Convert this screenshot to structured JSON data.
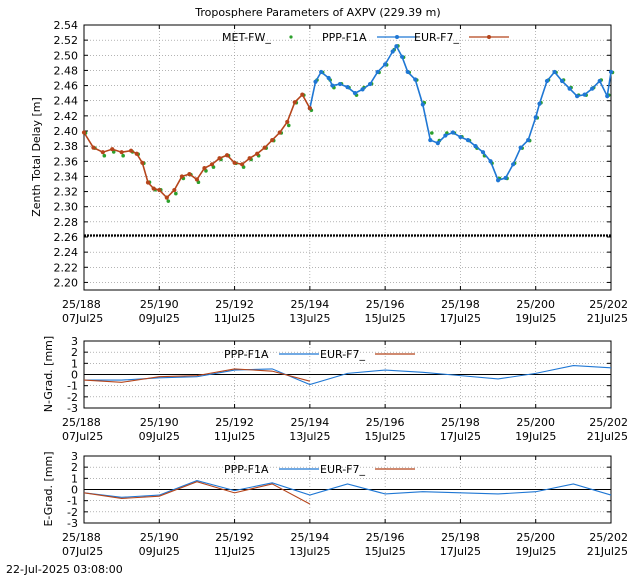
{
  "colors": {
    "met": "#2ca02c",
    "ppp": "#1f77d4",
    "eur": "#b5451b",
    "grid": "#888888",
    "axis": "#000000",
    "ref": "#000000"
  },
  "footer": {
    "timestamp": "22-Jul-2025 03:08:00"
  },
  "chart_data": [
    {
      "type": "scatter",
      "title": "Troposphere Parameters of AXPV (229.39 m)",
      "xlabel": "",
      "ylabel": "Zenth Total Delay [m]",
      "xlim": [
        188,
        202
      ],
      "ylim": [
        2.19,
        2.54
      ],
      "yticks": [
        2.2,
        2.22,
        2.24,
        2.26,
        2.28,
        2.3,
        2.32,
        2.34,
        2.36,
        2.38,
        2.4,
        2.42,
        2.44,
        2.46,
        2.48,
        2.5,
        2.52,
        2.54
      ],
      "xticks": [
        {
          "x": 188,
          "doy": "25/188",
          "date": "07Jul25"
        },
        {
          "x": 190,
          "doy": "25/190",
          "date": "09Jul25"
        },
        {
          "x": 192,
          "doy": "25/192",
          "date": "11Jul25"
        },
        {
          "x": 194,
          "doy": "25/194",
          "date": "13Jul25"
        },
        {
          "x": 196,
          "doy": "25/196",
          "date": "15Jul25"
        },
        {
          "x": 198,
          "doy": "25/198",
          "date": "17Jul25"
        },
        {
          "x": 200,
          "doy": "25/200",
          "date": "19Jul25"
        },
        {
          "x": 202,
          "doy": "25/202",
          "date": "21Jul25"
        }
      ],
      "grid": true,
      "legend_position": "top",
      "series": [
        {
          "name": "MET-FW_",
          "style": "dots",
          "color": "met",
          "x": [
            188.0,
            188.25,
            188.5,
            188.75,
            189.0,
            189.25,
            189.4,
            189.55,
            189.7,
            189.85,
            190.0,
            190.2,
            190.4,
            190.6,
            190.8,
            191.0,
            191.2,
            191.4,
            191.6,
            191.8,
            192.0,
            192.2,
            192.4,
            192.6,
            192.8,
            193.0,
            193.2,
            193.4,
            193.6,
            193.8,
            194.0,
            194.15,
            194.3,
            194.5,
            194.6,
            194.8,
            195.0,
            195.2,
            195.4,
            195.6,
            195.8,
            196.0,
            196.2,
            196.3,
            196.45,
            196.6,
            196.8,
            197.0,
            197.2,
            197.4,
            197.6,
            197.8,
            198.0,
            198.2,
            198.4,
            198.6,
            198.8,
            199.0,
            199.2,
            199.4,
            199.6,
            199.8,
            200.0,
            200.1,
            200.3,
            200.5,
            200.7,
            200.9,
            201.1,
            201.3,
            201.5,
            201.7,
            201.9,
            202.0
          ],
          "values": [
            2.4,
            2.38,
            2.37,
            2.375,
            2.37,
            2.375,
            2.372,
            2.36,
            2.335,
            2.325,
            2.325,
            2.31,
            2.32,
            2.34,
            2.345,
            2.335,
            2.35,
            2.355,
            2.365,
            2.37,
            2.36,
            2.355,
            2.365,
            2.37,
            2.38,
            2.39,
            2.4,
            2.41,
            2.44,
            2.45,
            2.43,
            2.47,
            2.48,
            2.47,
            2.46,
            2.465,
            2.46,
            2.45,
            2.46,
            2.465,
            2.48,
            2.49,
            2.51,
            2.515,
            2.5,
            2.48,
            2.47,
            2.44,
            2.4,
            2.39,
            2.4,
            2.4,
            2.395,
            2.39,
            2.38,
            2.37,
            2.36,
            2.34,
            2.34,
            2.36,
            2.38,
            2.39,
            2.42,
            2.44,
            2.47,
            2.48,
            2.47,
            2.46,
            2.45,
            2.45,
            2.46,
            2.47,
            2.45,
            2.48
          ]
        },
        {
          "name": "PPP-F1A",
          "style": "line-dots",
          "color": "ppp",
          "x": [
            194.0,
            194.15,
            194.3,
            194.5,
            194.6,
            194.8,
            195.0,
            195.2,
            195.4,
            195.6,
            195.8,
            196.0,
            196.2,
            196.3,
            196.45,
            196.6,
            196.8,
            197.0,
            197.2,
            197.4,
            197.6,
            197.8,
            198.0,
            198.2,
            198.4,
            198.6,
            198.8,
            199.0,
            199.2,
            199.4,
            199.6,
            199.8,
            200.0,
            200.1,
            200.3,
            200.5,
            200.7,
            200.9,
            201.1,
            201.3,
            201.5,
            201.7,
            201.9,
            202.0
          ],
          "values": [
            2.43,
            2.465,
            2.478,
            2.47,
            2.46,
            2.462,
            2.458,
            2.45,
            2.455,
            2.462,
            2.478,
            2.488,
            2.505,
            2.512,
            2.498,
            2.478,
            2.468,
            2.435,
            2.388,
            2.384,
            2.394,
            2.398,
            2.392,
            2.388,
            2.38,
            2.372,
            2.36,
            2.335,
            2.338,
            2.356,
            2.378,
            2.388,
            2.418,
            2.436,
            2.466,
            2.478,
            2.466,
            2.456,
            2.446,
            2.448,
            2.456,
            2.466,
            2.446,
            2.478
          ]
        },
        {
          "name": "EUR-F7_",
          "style": "line-dots",
          "color": "eur",
          "x": [
            188.0,
            188.25,
            188.5,
            188.75,
            189.0,
            189.25,
            189.4,
            189.55,
            189.7,
            189.85,
            190.0,
            190.2,
            190.4,
            190.6,
            190.8,
            191.0,
            191.2,
            191.4,
            191.6,
            191.8,
            192.0,
            192.2,
            192.4,
            192.6,
            192.8,
            193.0,
            193.2,
            193.4,
            193.6,
            193.8,
            194.0
          ],
          "values": [
            2.398,
            2.378,
            2.372,
            2.376,
            2.372,
            2.374,
            2.37,
            2.358,
            2.332,
            2.324,
            2.322,
            2.312,
            2.322,
            2.34,
            2.343,
            2.336,
            2.351,
            2.356,
            2.364,
            2.368,
            2.358,
            2.356,
            2.364,
            2.37,
            2.378,
            2.388,
            2.398,
            2.412,
            2.438,
            2.448,
            2.43
          ]
        }
      ],
      "reference_line": {
        "y": 2.262,
        "style": "dashed-thick"
      }
    },
    {
      "type": "line",
      "title": "",
      "xlabel": "",
      "ylabel": "N-Grad. [mm]",
      "xlim": [
        188,
        202
      ],
      "ylim": [
        -3,
        3
      ],
      "yticks": [
        -3,
        -2,
        -1,
        0,
        1,
        2,
        3
      ],
      "xticks": [
        {
          "x": 188,
          "doy": "25/188",
          "date": "07Jul25"
        },
        {
          "x": 190,
          "doy": "25/190",
          "date": "09Jul25"
        },
        {
          "x": 192,
          "doy": "25/192",
          "date": "11Jul25"
        },
        {
          "x": 194,
          "doy": "25/194",
          "date": "13Jul25"
        },
        {
          "x": 196,
          "doy": "25/196",
          "date": "15Jul25"
        },
        {
          "x": 198,
          "doy": "25/198",
          "date": "17Jul25"
        },
        {
          "x": 200,
          "doy": "25/200",
          "date": "19Jul25"
        },
        {
          "x": 202,
          "doy": "25/202",
          "date": "21Jul25"
        }
      ],
      "grid": true,
      "legend_position": "top",
      "series": [
        {
          "name": "PPP-F1A",
          "color": "ppp",
          "x": [
            188,
            189,
            190,
            191,
            192,
            193,
            194,
            195,
            196,
            197,
            198,
            199,
            200,
            201,
            202
          ],
          "values": [
            -0.5,
            -0.5,
            -0.3,
            -0.2,
            0.4,
            0.5,
            -0.9,
            0.1,
            0.4,
            0.2,
            -0.1,
            -0.4,
            0.1,
            0.8,
            0.6
          ]
        },
        {
          "name": "EUR-F7_",
          "color": "eur",
          "x": [
            188,
            189,
            190,
            191,
            192,
            193,
            194
          ],
          "values": [
            -0.5,
            -0.7,
            -0.2,
            -0.1,
            0.5,
            0.3,
            -0.6
          ]
        }
      ]
    },
    {
      "type": "line",
      "title": "",
      "xlabel": "",
      "ylabel": "E-Grad. [mm]",
      "xlim": [
        188,
        202
      ],
      "ylim": [
        -3,
        3
      ],
      "yticks": [
        -3,
        -2,
        -1,
        0,
        1,
        2,
        3
      ],
      "xticks": [
        {
          "x": 188,
          "doy": "25/188",
          "date": "07Jul25"
        },
        {
          "x": 190,
          "doy": "25/190",
          "date": "09Jul25"
        },
        {
          "x": 192,
          "doy": "25/192",
          "date": "11Jul25"
        },
        {
          "x": 194,
          "doy": "25/194",
          "date": "13Jul25"
        },
        {
          "x": 196,
          "doy": "25/196",
          "date": "15Jul25"
        },
        {
          "x": 198,
          "doy": "25/198",
          "date": "17Jul25"
        },
        {
          "x": 200,
          "doy": "25/200",
          "date": "19Jul25"
        },
        {
          "x": 202,
          "doy": "25/202",
          "date": "21Jul25"
        }
      ],
      "grid": true,
      "legend_position": "top",
      "series": [
        {
          "name": "PPP-F1A",
          "color": "ppp",
          "x": [
            188,
            189,
            190,
            191,
            192,
            193,
            194,
            195,
            196,
            197,
            198,
            199,
            200,
            201,
            202
          ],
          "values": [
            -0.3,
            -0.7,
            -0.5,
            0.8,
            -0.1,
            0.6,
            -0.5,
            0.5,
            -0.4,
            -0.2,
            -0.3,
            -0.4,
            -0.2,
            0.5,
            -0.5
          ]
        },
        {
          "name": "EUR-F7_",
          "color": "eur",
          "x": [
            188,
            189,
            190,
            191,
            192,
            193,
            194
          ],
          "values": [
            -0.3,
            -0.8,
            -0.6,
            0.7,
            -0.3,
            0.5,
            -1.3
          ]
        }
      ]
    }
  ]
}
